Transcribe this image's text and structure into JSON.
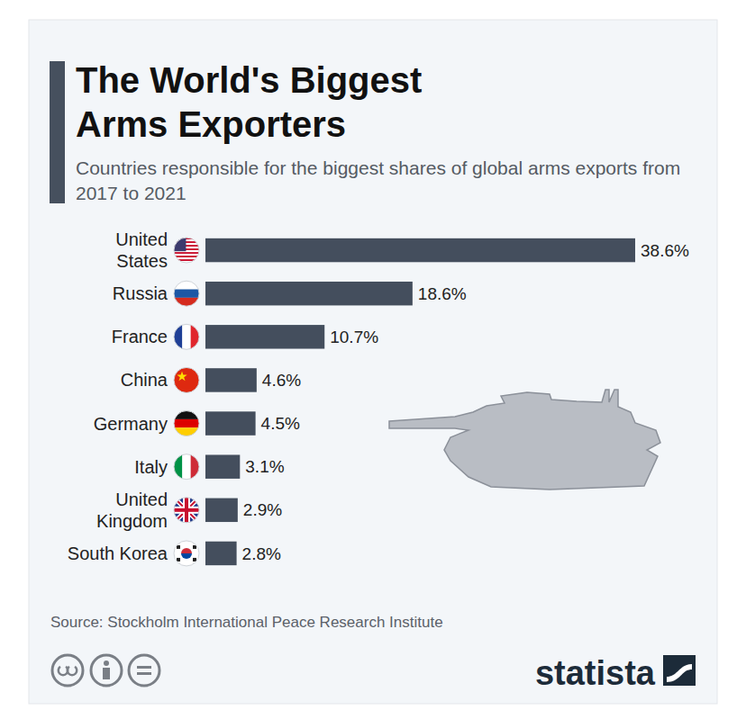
{
  "chart_data": {
    "type": "bar",
    "orientation": "horizontal",
    "title": "The World's Biggest Arms Exporters",
    "subtitle": "Countries responsible for the biggest shares of global arms exports from 2017 to 2021",
    "categories": [
      "United States",
      "Russia",
      "France",
      "China",
      "Germany",
      "Italy",
      "United Kingdom",
      "South Korea"
    ],
    "values": [
      38.6,
      18.6,
      10.7,
      4.6,
      4.5,
      3.1,
      2.9,
      2.8
    ],
    "value_labels": [
      "38.6%",
      "18.6%",
      "10.7%",
      "4.6%",
      "4.5%",
      "3.1%",
      "2.9%",
      "2.8%"
    ],
    "color": "#444e5d",
    "xlim": [
      0,
      38.6
    ],
    "data_labels": true,
    "tick_labels": false,
    "grid": false,
    "source": "Source: Stockholm International Peace Research Institute",
    "brand": "statista"
  }
}
